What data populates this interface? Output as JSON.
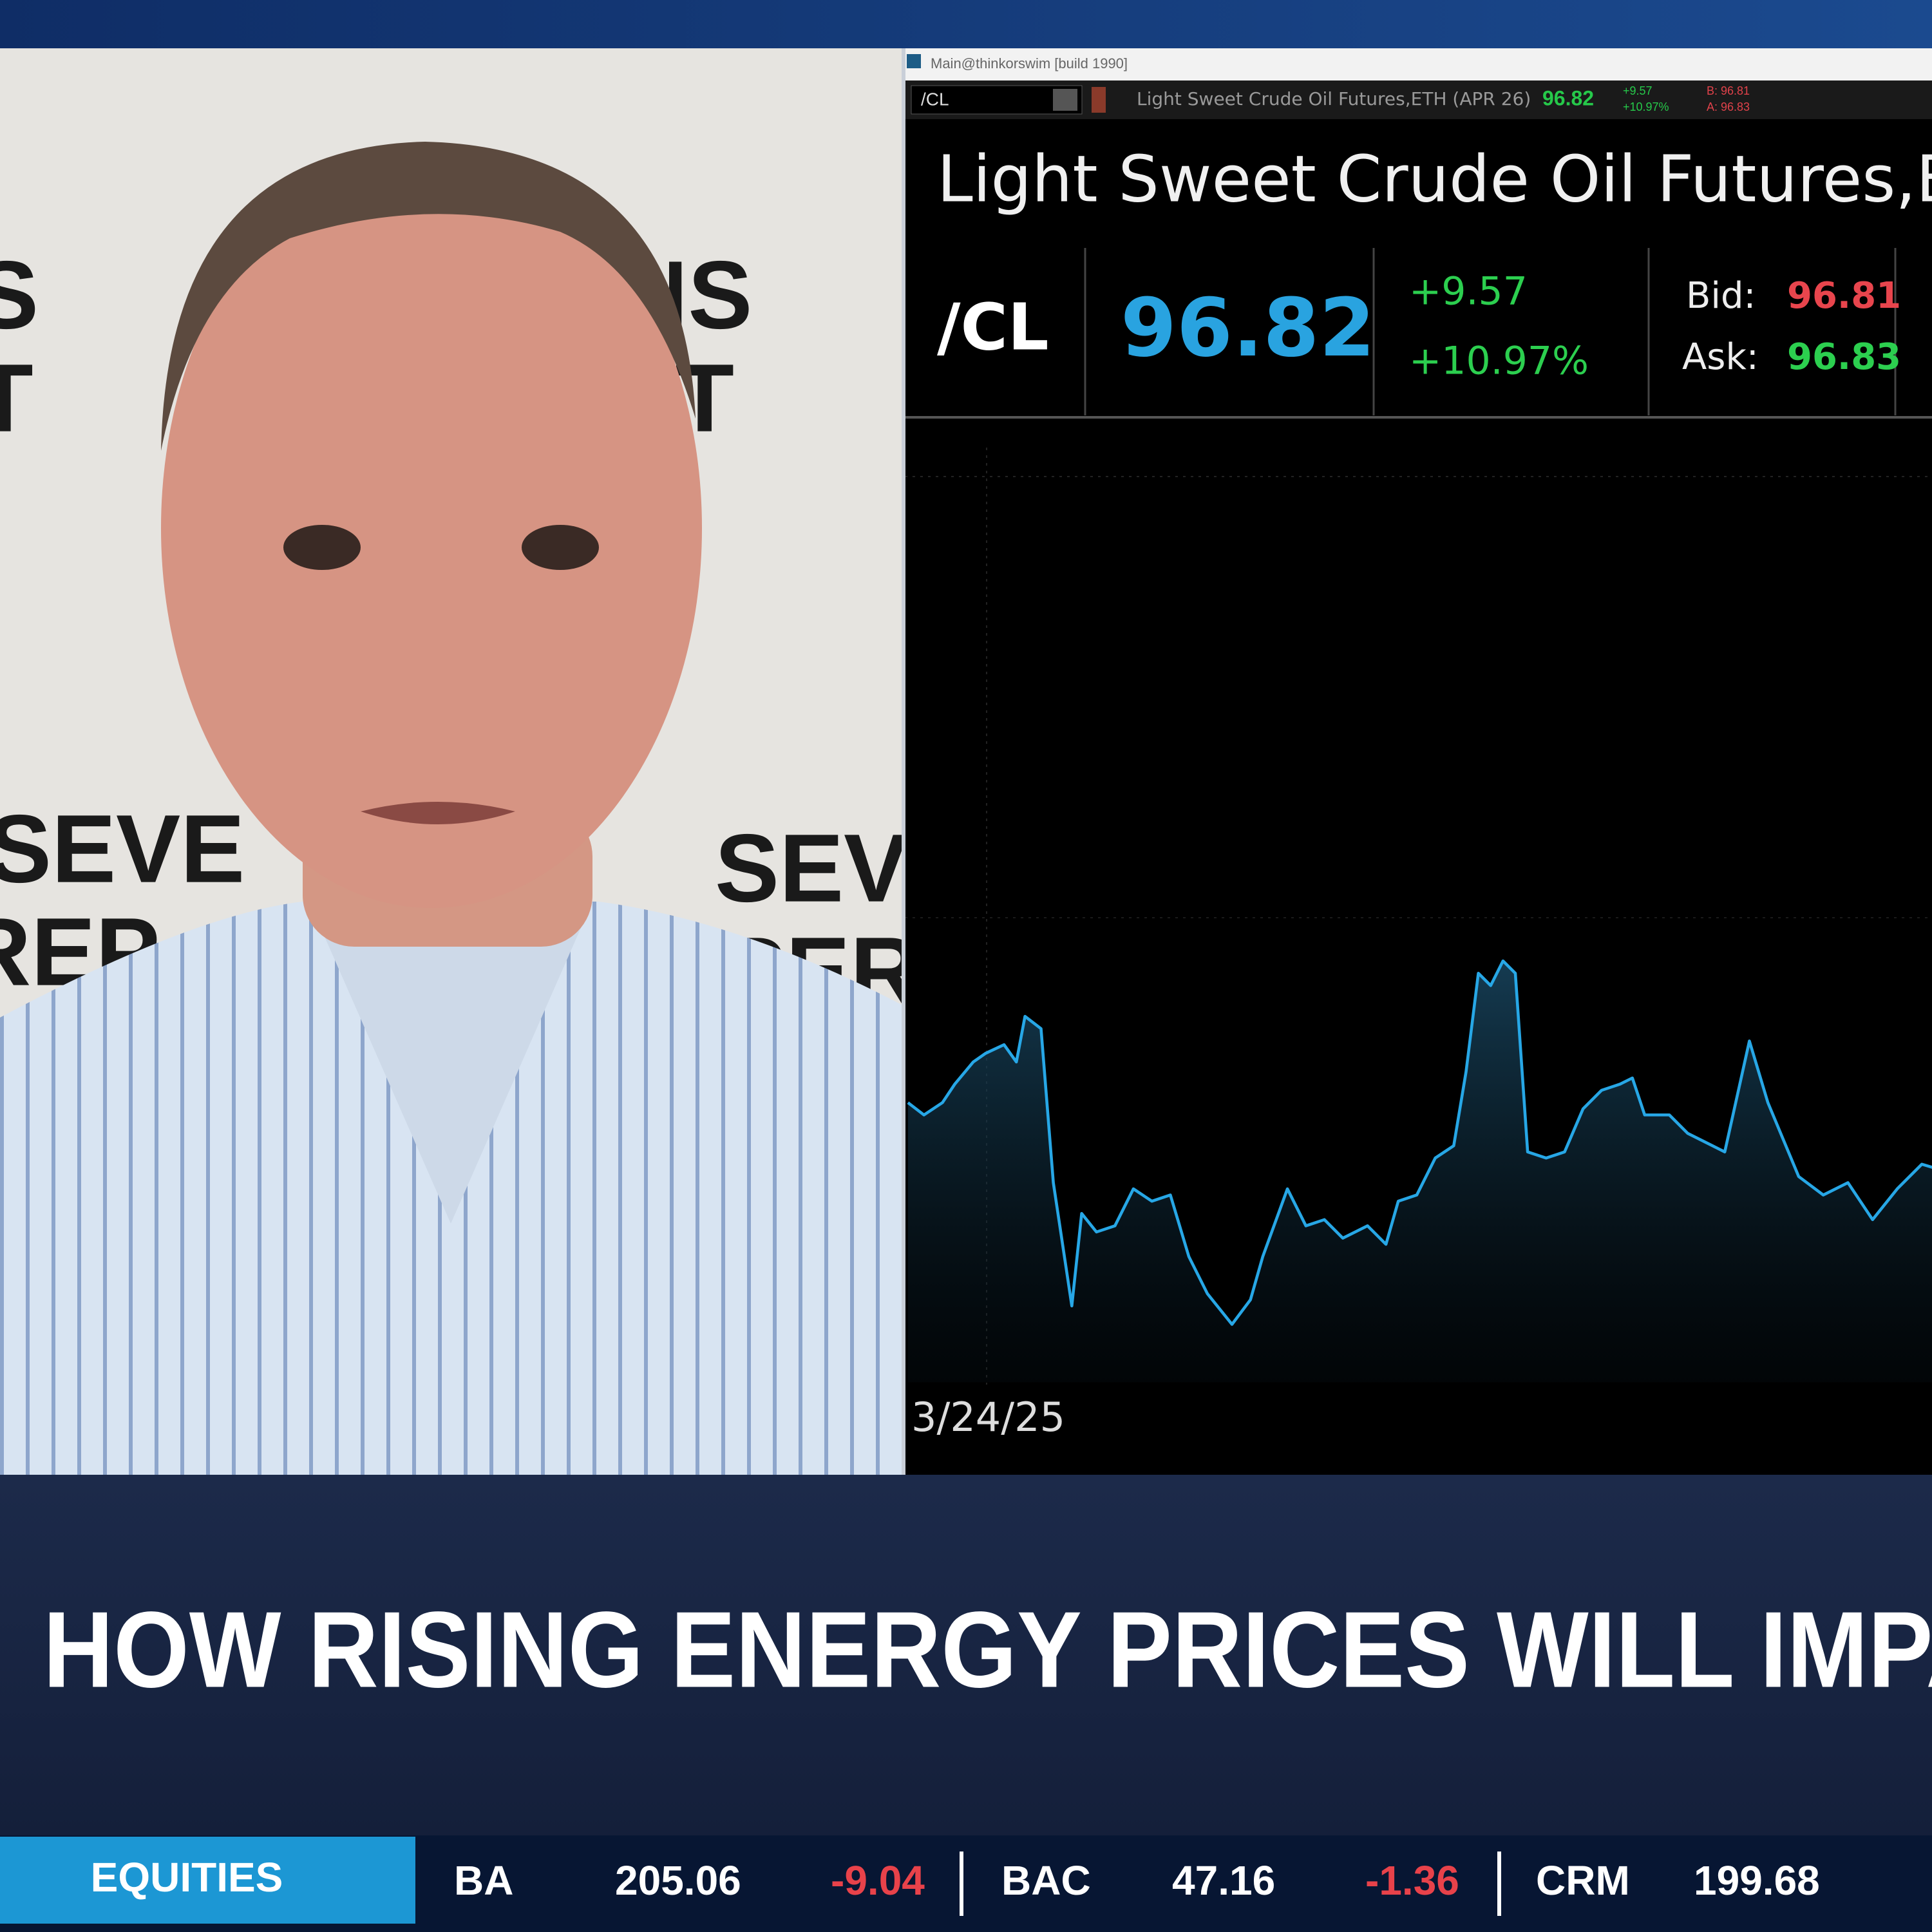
{
  "window": {
    "title": "Main@thinkorswim [build 1990]",
    "toolbar": {
      "symbol": "/CL",
      "description": "Light Sweet Crude Oil Futures,ETH (APR 26)",
      "last": "96.82",
      "change": "+9.57",
      "change_pct": "+10.97%",
      "bid": "B: 96.81",
      "ask": "A: 96.83"
    },
    "heading": "Light Sweet Crude Oil Futures,E",
    "quote": {
      "symbol": "/CL",
      "last": "96.82",
      "change": "+9.57",
      "change_pct": "+10.97%",
      "bid_label": "Bid:",
      "bid": "96.81",
      "ask_label": "Ask:",
      "ask": "96.83"
    },
    "chart_date": "3/24/25"
  },
  "lower_third": {
    "headline": "HOW RISING ENERGY PRICES WILL IMPAC"
  },
  "ticker": {
    "section": "EQUITIES",
    "items": [
      {
        "symbol": "BA",
        "price": "205.06",
        "change": "-9.04"
      },
      {
        "symbol": "BAC",
        "price": "47.16",
        "change": "-1.36"
      },
      {
        "symbol": "CRM",
        "price": "199.68"
      }
    ]
  }
}
